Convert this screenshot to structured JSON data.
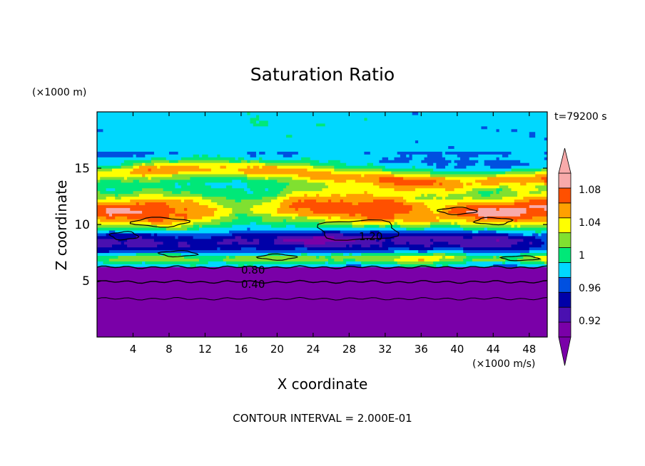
{
  "chart_data": {
    "type": "heatmap",
    "title": "Saturation Ratio",
    "time_label": "t=79200 s",
    "xlabel": "X coordinate",
    "ylabel": "Z coordinate",
    "x_unit": "(×1000 m/s)",
    "y_unit": "(×1000 m)",
    "xlim": [
      0,
      50
    ],
    "ylim": [
      0,
      20
    ],
    "x_ticks": [
      "4",
      "8",
      "12",
      "16",
      "20",
      "24",
      "28",
      "32",
      "36",
      "40",
      "44",
      "48"
    ],
    "y_ticks": [
      "5",
      "10",
      "15"
    ],
    "contour_labels": [
      "1.20",
      "0.80",
      "0.40"
    ],
    "footer": "CONTOUR INTERVAL = 2.000E-01",
    "colorbar": {
      "tick_labels": [
        "1.08",
        "1.04",
        "1",
        "0.96",
        "0.92"
      ],
      "levels": [
        0.9,
        0.92,
        0.94,
        0.96,
        0.98,
        1.0,
        1.02,
        1.04,
        1.06,
        1.08,
        1.1
      ],
      "colors": [
        "#7a00a8",
        "#4a10b0",
        "#0000a8",
        "#0050e0",
        "#00d8ff",
        "#00e878",
        "#80e030",
        "#ffff00",
        "#ffa000",
        "#ff5000",
        "#f8aaaa"
      ],
      "over_color": "#f8aaaa",
      "under_color": "#7a00a8"
    }
  }
}
